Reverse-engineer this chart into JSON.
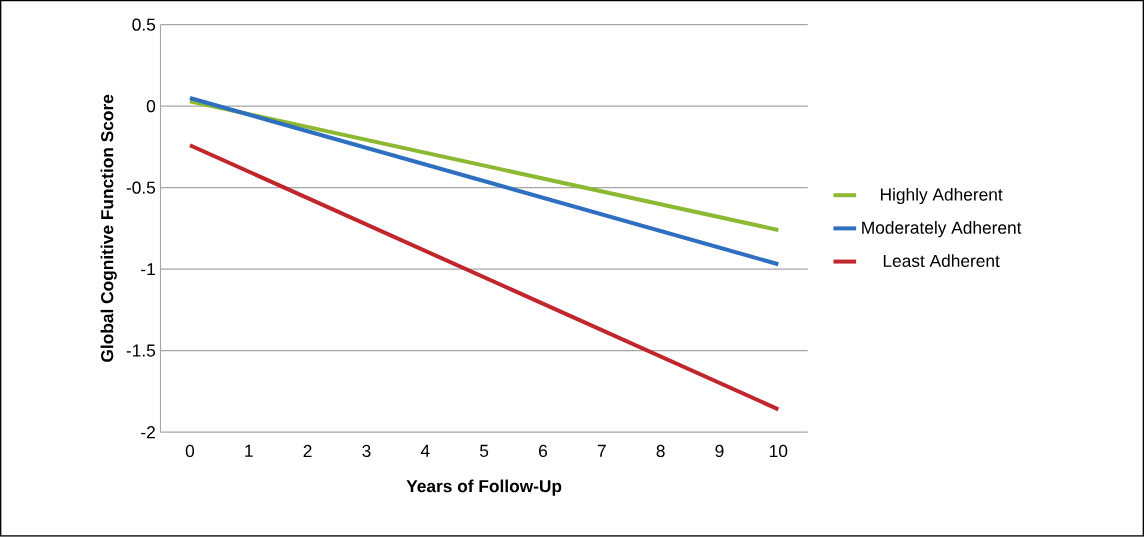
{
  "chart_data": {
    "type": "line",
    "xlabel": "Years of Follow-Up",
    "ylabel": "Global Cognitive Function Score",
    "x": [
      0,
      10
    ],
    "xlim": [
      -0.5,
      10.5
    ],
    "xticks": [
      0,
      1,
      2,
      3,
      4,
      5,
      6,
      7,
      8,
      9,
      10
    ],
    "ylim": [
      -2,
      0.5
    ],
    "yticks": [
      -2,
      -1.5,
      -1,
      -0.5,
      0,
      0.5
    ],
    "grid": "y",
    "legend": "right",
    "marker": "none",
    "line_style": "solid",
    "series": [
      {
        "name": "Highly Adherent",
        "color": "#8cb832",
        "values": [
          0.03,
          -0.76
        ]
      },
      {
        "name": "Moderately Adherent",
        "color": "#2e6fc0",
        "values": [
          0.05,
          -0.97
        ]
      },
      {
        "name": "Least Adherent",
        "color": "#c0262b",
        "values": [
          -0.24,
          -1.86
        ]
      }
    ]
  }
}
